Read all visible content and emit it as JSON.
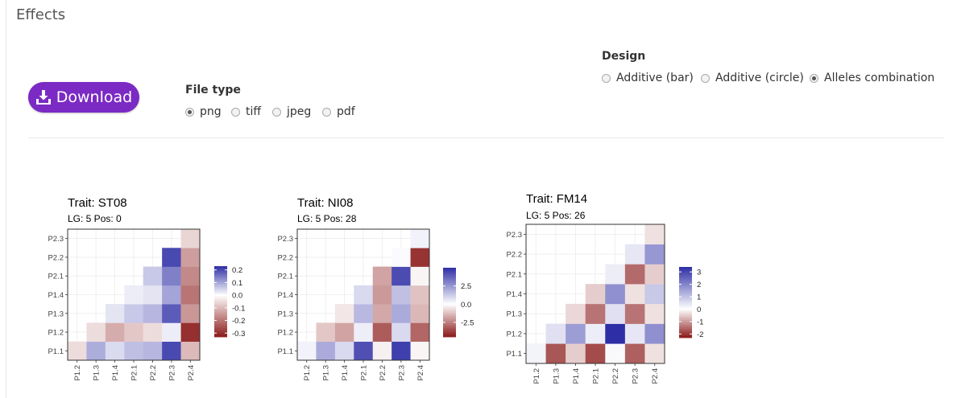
{
  "section_title": "Effects",
  "download_label": "Download",
  "file_type": {
    "label": "File type",
    "options": [
      "png",
      "tiff",
      "jpeg",
      "pdf"
    ],
    "selected": "png"
  },
  "design": {
    "label": "Design",
    "options": [
      "Additive (bar)",
      "Additive (circle)",
      "Alleles combination"
    ],
    "selected": "Alleles combination"
  },
  "colors": {
    "low": "#8b1a1a",
    "mid": "#ffffff",
    "high": "#2e2ea6",
    "accent": "#7b2ac4"
  },
  "chart_data": [
    {
      "type": "heatmap",
      "title": "Trait: ST08",
      "subtitle": "LG: 5 Pos: 0",
      "xlabels": [
        "P1.2",
        "P1.3",
        "P1.4",
        "P2.1",
        "P2.2",
        "P2.3",
        "P2.4"
      ],
      "ylabels": [
        "P1.1",
        "P1.2",
        "P1.3",
        "P1.4",
        "P2.1",
        "P2.2",
        "P2.3"
      ],
      "values": [
        [
          -0.05,
          0.09,
          0.04,
          0.07,
          0.08,
          0.2,
          -0.1
        ],
        [
          null,
          -0.05,
          -0.12,
          -0.08,
          -0.05,
          0.02,
          -0.3
        ],
        [
          null,
          null,
          0.03,
          0.06,
          0.08,
          0.18,
          -0.15
        ],
        [
          null,
          null,
          null,
          0.02,
          0.03,
          0.1,
          -0.2
        ],
        [
          null,
          null,
          null,
          null,
          0.06,
          0.14,
          -0.17
        ],
        [
          null,
          null,
          null,
          null,
          null,
          0.2,
          -0.14
        ],
        [
          null,
          null,
          null,
          null,
          null,
          null,
          -0.06
        ]
      ],
      "colorbar": {
        "ticks": [
          0.2,
          0.1,
          0.0,
          -0.1,
          -0.2,
          -0.3
        ],
        "tick_labels": [
          "0.2",
          "0.1",
          "0.0",
          "-0.1",
          "-0.2",
          "-0.3"
        ],
        "range": [
          -0.33,
          0.23
        ]
      }
    },
    {
      "type": "heatmap",
      "title": "Trait: NI08",
      "subtitle": "LG: 5 Pos: 28",
      "xlabels": [
        "P1.2",
        "P1.3",
        "P1.4",
        "P2.1",
        "P2.2",
        "P2.3",
        "P2.4"
      ],
      "ylabels": [
        "P1.1",
        "P1.2",
        "P1.3",
        "P1.4",
        "P2.1",
        "P2.2",
        "P2.3"
      ],
      "values": [
        [
          0.3,
          2.0,
          0.9,
          4.2,
          -0.3,
          4.6,
          -0.2
        ],
        [
          null,
          -1.1,
          -1.8,
          0.4,
          -3.2,
          0.9,
          -3.0
        ],
        [
          null,
          null,
          -0.5,
          1.7,
          -1.7,
          2.0,
          -1.4
        ],
        [
          null,
          null,
          null,
          0.9,
          -2.0,
          1.5,
          -1.2
        ],
        [
          null,
          null,
          null,
          null,
          -1.8,
          4.3,
          -0.2
        ],
        [
          null,
          null,
          null,
          null,
          null,
          0.1,
          -4.0
        ],
        [
          null,
          null,
          null,
          null,
          null,
          null,
          0.3
        ]
      ],
      "colorbar": {
        "ticks": [
          2.5,
          0.0,
          -2.5
        ],
        "tick_labels": [
          "2.5",
          "0.0",
          "-2.5"
        ],
        "range": [
          -4.5,
          5.0
        ]
      }
    },
    {
      "type": "heatmap",
      "title": "Trait: FM14",
      "subtitle": "LG: 5 Pos: 26",
      "xlabels": [
        "P1.2",
        "P1.3",
        "P1.4",
        "P2.1",
        "P2.2",
        "P2.3",
        "P2.4"
      ],
      "ylabels": [
        "P1.1",
        "P1.2",
        "P1.3",
        "P1.4",
        "P2.1",
        "P2.2",
        "P2.3"
      ],
      "values": [
        [
          0.2,
          -1.7,
          -0.5,
          -1.8,
          0.1,
          -1.6,
          -0.3
        ],
        [
          null,
          0.5,
          1.6,
          0.3,
          3.4,
          0.4,
          1.8
        ],
        [
          null,
          null,
          -0.4,
          -1.4,
          0.5,
          -1.4,
          -0.3
        ],
        [
          null,
          null,
          null,
          -0.5,
          1.8,
          -0.3,
          0.9
        ],
        [
          null,
          null,
          null,
          null,
          0.3,
          -1.5,
          -0.5
        ],
        [
          null,
          null,
          null,
          null,
          null,
          0.4,
          1.7
        ],
        [
          null,
          null,
          null,
          null,
          null,
          null,
          -0.3
        ]
      ],
      "colorbar": {
        "ticks": [
          3,
          2,
          1,
          0,
          -1,
          -2
        ],
        "tick_labels": [
          "3",
          "2",
          "1",
          "0",
          "-1",
          "-2"
        ],
        "range": [
          -2.3,
          3.4
        ]
      }
    }
  ]
}
